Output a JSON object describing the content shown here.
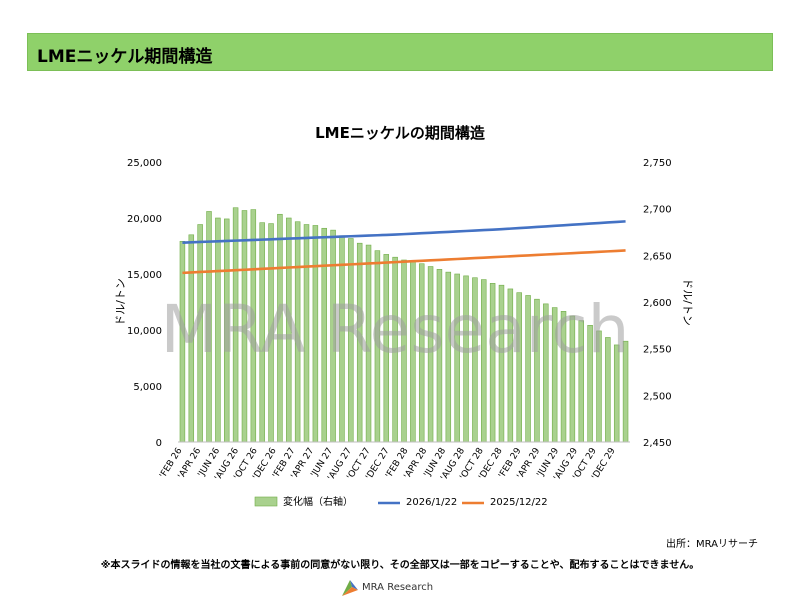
{
  "slide": {
    "header_title": "LMEニッケル期間構造",
    "source_label": "出所：MRAリサーチ",
    "notice": "※本スライドの情報を当社の文書による事前の同意がない限り、その全部又は一部をコピーすることや、配布することはできません。",
    "footer_brand": "MRA Research",
    "watermark": "MRA Research"
  },
  "colors": {
    "header_bg": "#8fd16a",
    "bar_fill": "#a9d18e",
    "bar_stroke": "#70ad47",
    "line_2026": "#4472c4",
    "line_2025": "#ed7d31"
  },
  "chart_data": {
    "type": "bar",
    "title": "LMEニッケルの期間構造",
    "ylabel": "ドル/トン",
    "y2label": "ドル/トン",
    "ylim": [
      0,
      25000
    ],
    "yticks": [
      0,
      5000,
      10000,
      15000,
      20000,
      25000
    ],
    "y_tick_labels": [
      "0",
      "5,000",
      "10,000",
      "15,000",
      "20,000",
      "25,000"
    ],
    "y2lim": [
      2450,
      2750
    ],
    "y2ticks": [
      2450,
      2500,
      2550,
      2600,
      2650,
      2700,
      2750
    ],
    "y2_tick_labels": [
      "2,450",
      "2,500",
      "2,550",
      "2,600",
      "2,650",
      "2,700",
      "2,750"
    ],
    "x_tick_labels": [
      "'FEB 26",
      "'APR 26",
      "'JUN 26",
      "'AUG 26",
      "'OCT 26",
      "'DEC 26",
      "'FEB 27",
      "'APR 27",
      "'JUN 27",
      "'AUG 27",
      "'OCT 27",
      "'DEC 27",
      "'FEB 28",
      "'APR 28",
      "'JUN 28",
      "'AUG 28",
      "'OCT 28",
      "'DEC 28",
      "'FEB 29",
      "'APR 29",
      "'JUN 29",
      "'AUG 29",
      "'OCT 29",
      "'DEC 29"
    ],
    "grid": false,
    "legend": "bottom",
    "series": [
      {
        "name": "変化幅（右軸）",
        "type": "bar",
        "axis": "right",
        "values": [
          2665,
          2672,
          2683,
          2697,
          2690,
          2689,
          2701,
          2698,
          2699,
          2685,
          2684,
          2694,
          2690,
          2686,
          2683,
          2682,
          2679,
          2677,
          2671,
          2668,
          2663,
          2661,
          2655,
          2651,
          2648,
          2645,
          2643,
          2641,
          2638,
          2635,
          2632,
          2630,
          2628,
          2626,
          2624,
          2620,
          2618,
          2614,
          2610,
          2607,
          2603,
          2598,
          2594,
          2590,
          2585,
          2580,
          2575,
          2569,
          2562,
          2554,
          2558
        ]
      },
      {
        "name": "2026/1/22",
        "type": "line",
        "axis": "left",
        "values": [
          17800,
          17830,
          17860,
          17890,
          17920,
          17950,
          17980,
          18010,
          18040,
          18070,
          18100,
          18130,
          18160,
          18190,
          18220,
          18250,
          18280,
          18310,
          18340,
          18370,
          18400,
          18430,
          18460,
          18490,
          18520,
          18560,
          18600,
          18640,
          18680,
          18720,
          18760,
          18800,
          18840,
          18880,
          18920,
          18960,
          19000,
          19050,
          19100,
          19150,
          19200,
          19250,
          19300,
          19350,
          19400,
          19450,
          19500,
          19550,
          19600,
          19650,
          19700
        ]
      },
      {
        "name": "2025/12/22",
        "type": "line",
        "axis": "left",
        "values": [
          15100,
          15140,
          15180,
          15220,
          15260,
          15300,
          15340,
          15380,
          15420,
          15460,
          15500,
          15540,
          15580,
          15620,
          15660,
          15700,
          15740,
          15780,
          15820,
          15860,
          15900,
          15940,
          15980,
          16020,
          16060,
          16100,
          16140,
          16180,
          16220,
          16260,
          16300,
          16340,
          16380,
          16420,
          16460,
          16500,
          16540,
          16580,
          16620,
          16660,
          16700,
          16740,
          16780,
          16820,
          16860,
          16900,
          16940,
          16980,
          17020,
          17060,
          17100
        ]
      }
    ]
  }
}
